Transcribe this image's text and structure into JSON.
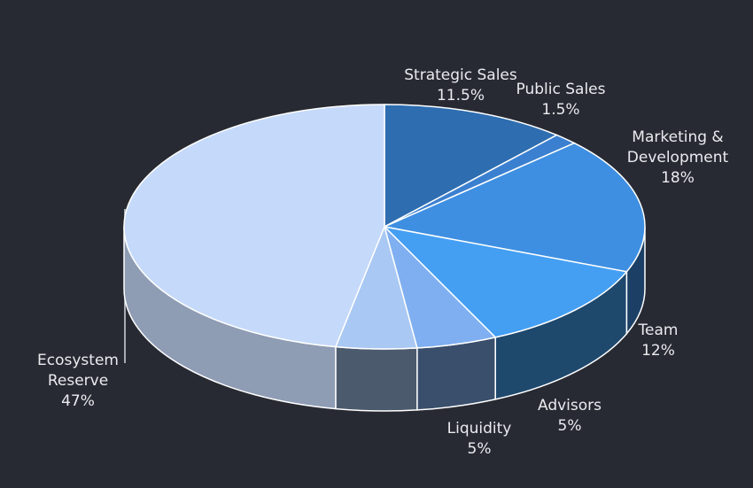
{
  "chart_data": {
    "type": "pie3d",
    "categories": [
      "Strategic Sales",
      "Public Sales",
      "Marketing & Development",
      "Team",
      "Advisors",
      "Liquidity",
      "Ecosystem Reserve"
    ],
    "values": [
      11.5,
      1.5,
      18,
      12,
      5,
      5,
      47
    ],
    "value_labels": [
      "11.5%",
      "1.5%",
      "18%",
      "12%",
      "5%",
      "5%",
      "47%"
    ],
    "colors": [
      "#2e6db0",
      "#3b80d0",
      "#3e8fe1",
      "#449ff3",
      "#7faff0",
      "#a9c8f3",
      "#c5d9fa"
    ]
  }
}
